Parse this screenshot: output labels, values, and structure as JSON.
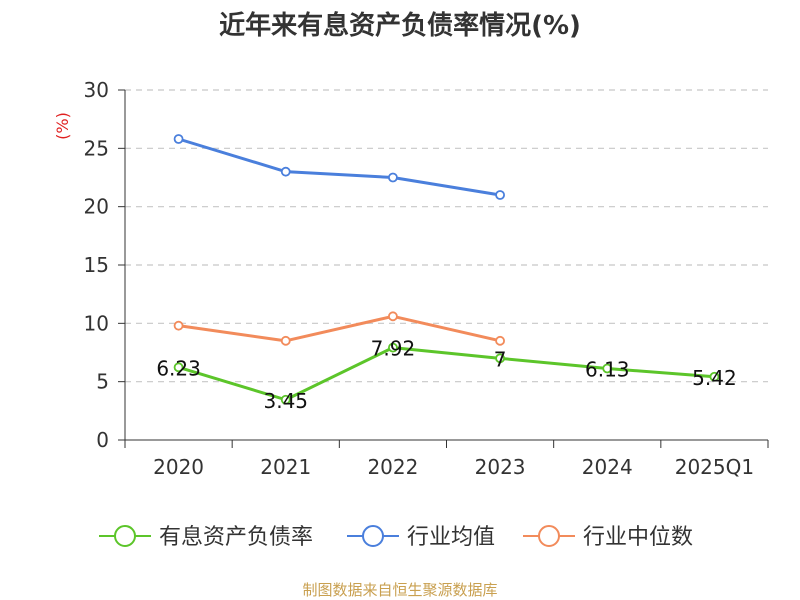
{
  "chart_data": {
    "type": "line",
    "title": "近年来有息资产负债率情况(%)",
    "ylabel": "(%)",
    "xlabel": "",
    "categories": [
      "2020",
      "2021",
      "2022",
      "2023",
      "2024",
      "2025Q1"
    ],
    "ylim": [
      0,
      30
    ],
    "yticks": [
      0,
      5,
      10,
      15,
      20,
      25,
      30
    ],
    "grid": true,
    "legend_position": "bottom",
    "series": [
      {
        "name": "有息资产负债率",
        "color": "#5cc52a",
        "values": [
          6.23,
          3.45,
          7.92,
          7,
          6.13,
          5.42
        ],
        "labels": [
          "6.23",
          "3.45",
          "7.92",
          "7",
          "6.13",
          "5.42"
        ]
      },
      {
        "name": "行业均值",
        "color": "#4a7fdc",
        "values": [
          25.8,
          23.0,
          22.5,
          21.0,
          null,
          null
        ]
      },
      {
        "name": "行业中位数",
        "color": "#f28b5b",
        "values": [
          9.8,
          8.5,
          10.6,
          8.5,
          null,
          null
        ]
      }
    ]
  },
  "footer": {
    "source": "制图数据来自恒生聚源数据库"
  }
}
